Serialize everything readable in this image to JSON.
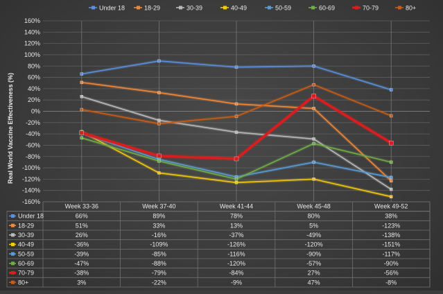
{
  "chart_data": {
    "type": "line",
    "ylabel": "Real World Vaccine Effectiveness (%)",
    "ylim": [
      -160,
      160
    ],
    "yticks": [
      160,
      140,
      120,
      100,
      80,
      60,
      40,
      20,
      0,
      -20,
      -40,
      -60,
      -80,
      -100,
      -120,
      -140,
      -160
    ],
    "ytick_labels": [
      "160%",
      "140%",
      "120%",
      "100%",
      "80%",
      "60%",
      "40%",
      "20%",
      "0%",
      "-20%",
      "-40%",
      "-60%",
      "-80%",
      "-100%",
      "-120%",
      "-140%",
      "-160%"
    ],
    "categories": [
      "Week 33-36",
      "Week 37-40",
      "Week 41-44",
      "Week 45-48",
      "Week 49-52"
    ],
    "grid": true,
    "legend_position": "top",
    "series": [
      {
        "name": "Under 18",
        "color": "#5b8fd9",
        "values": [
          66,
          89,
          78,
          80,
          38
        ],
        "labels": [
          "66%",
          "89%",
          "78%",
          "80%",
          "38%"
        ]
      },
      {
        "name": "18-29",
        "color": "#f0883a",
        "values": [
          51,
          33,
          13,
          5,
          -123
        ],
        "labels": [
          "51%",
          "33%",
          "13%",
          "5%",
          "-123%"
        ]
      },
      {
        "name": "30-39",
        "color": "#b9b9b9",
        "values": [
          26,
          -16,
          -37,
          -49,
          -138
        ],
        "labels": [
          "26%",
          "-16%",
          "-37%",
          "-49%",
          "-138%"
        ]
      },
      {
        "name": "40-49",
        "color": "#f2c811",
        "values": [
          -36,
          -109,
          -126,
          -120,
          -151
        ],
        "labels": [
          "-36%",
          "-109%",
          "-126%",
          "-120%",
          "-151%"
        ]
      },
      {
        "name": "50-59",
        "color": "#5b9bd5",
        "values": [
          -39,
          -85,
          -116,
          -90,
          -117
        ],
        "labels": [
          "-39%",
          "-85%",
          "-116%",
          "-90%",
          "-117%"
        ]
      },
      {
        "name": "60-69",
        "color": "#70ad47",
        "values": [
          -47,
          -88,
          -120,
          -57,
          -90
        ],
        "labels": [
          "-47%",
          "-88%",
          "-120%",
          "-57%",
          "-90%"
        ]
      },
      {
        "name": "70-79",
        "color": "#d81e1e",
        "values": [
          -38,
          -79,
          -84,
          27,
          -56
        ],
        "labels": [
          "-38%",
          "-79%",
          "-84%",
          "27%",
          "-56%"
        ]
      },
      {
        "name": "80+",
        "color": "#c65d18",
        "values": [
          3,
          -22,
          -9,
          47,
          -8
        ],
        "labels": [
          "3%",
          "-22%",
          "-9%",
          "47%",
          "-8%"
        ]
      }
    ]
  }
}
